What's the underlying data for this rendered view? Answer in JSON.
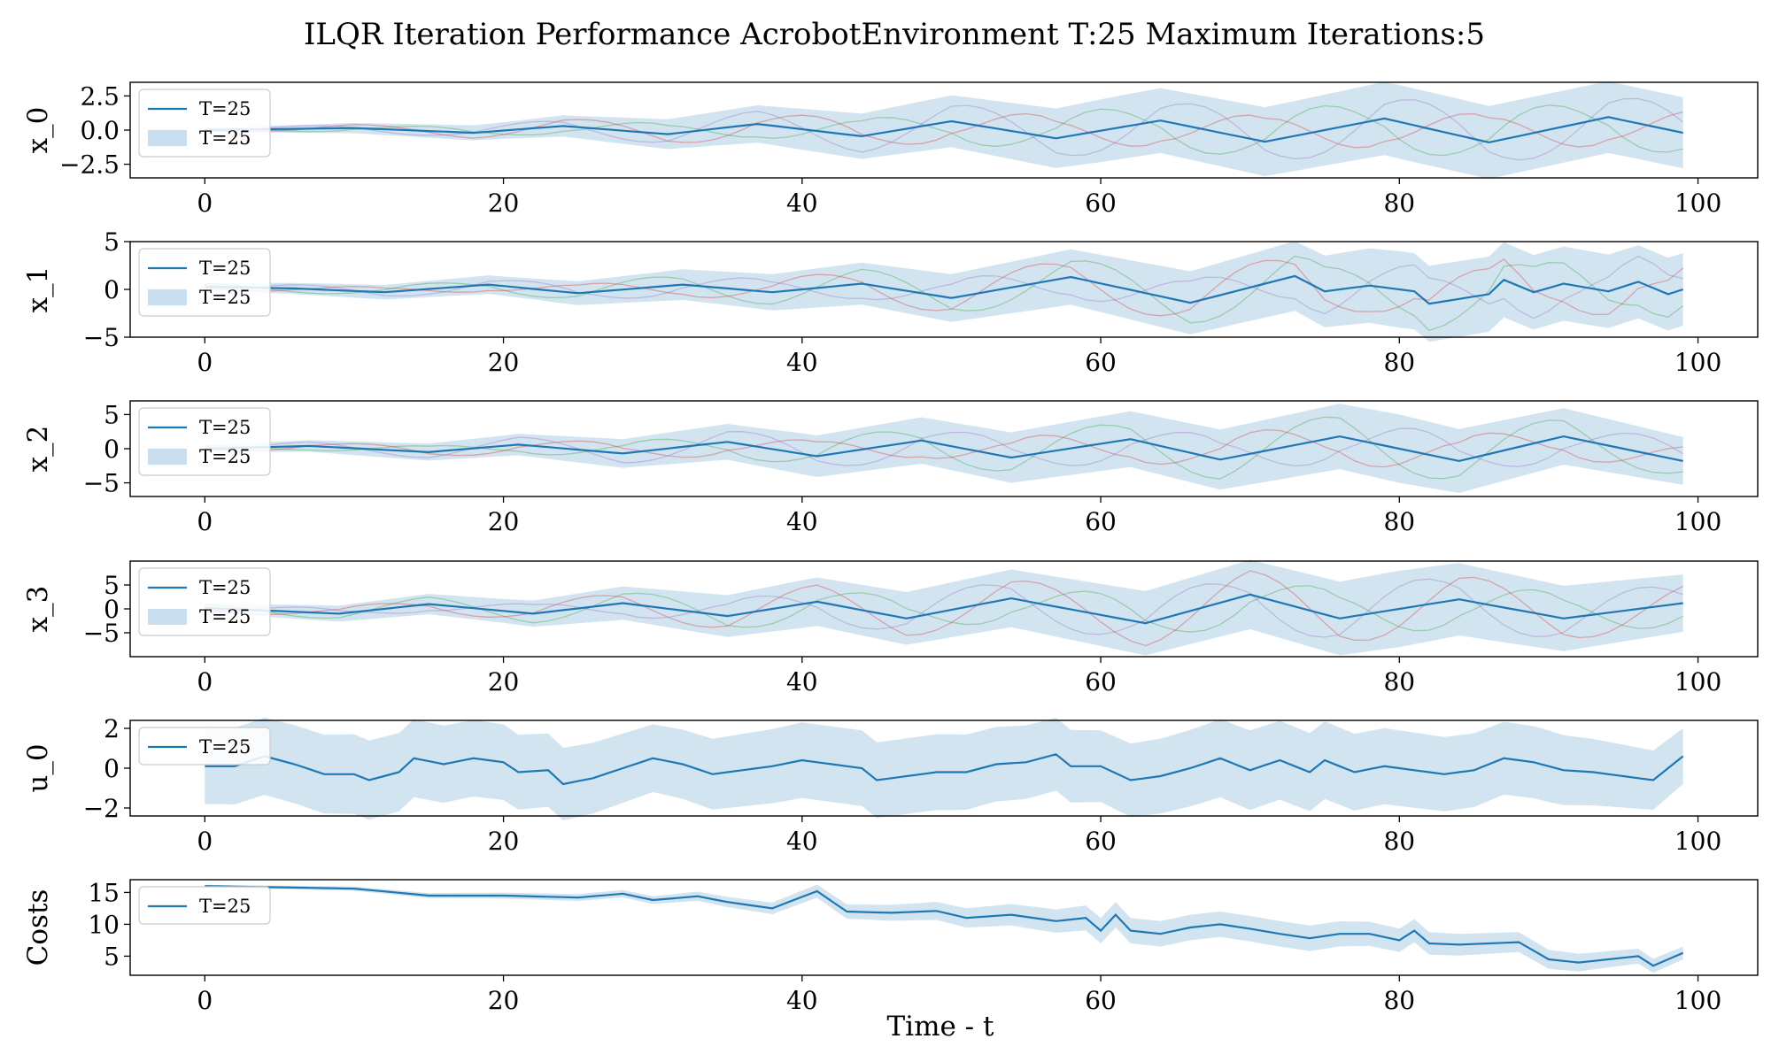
{
  "colors": {
    "mean": "#1f77b4",
    "band": "#bcd6ea",
    "traces": [
      "#2ca02c",
      "#d62728",
      "#9467bd"
    ]
  },
  "chart_data": {
    "type": "line",
    "title": "ILQR Iteration Performance AcrobotEnvironment T:25 Maximum Iterations:5",
    "xlabel": "Time - t",
    "xlim": [
      -5,
      104
    ],
    "xticks": [
      0,
      20,
      40,
      60,
      80,
      100
    ],
    "legend_position": "top-left",
    "grid": false,
    "panels": [
      {
        "ylabel": "x_0",
        "ylim": [
          -3.5,
          3.5
        ],
        "yticks": [
          2.5,
          0.0,
          -2.5
        ],
        "ytick_labels": [
          "2.5",
          "0.0",
          "−2.5"
        ],
        "legend": [
          "T=25",
          "T=25"
        ],
        "series": [
          {
            "name": "T=25",
            "x": [
              0,
              99
            ],
            "mean_points": [
              [
                0,
                0
              ],
              [
                10,
                0.15
              ],
              [
                18,
                -0.2
              ],
              [
                24,
                0.3
              ],
              [
                31,
                -0.3
              ],
              [
                37,
                0.45
              ],
              [
                44,
                -0.45
              ],
              [
                50,
                0.65
              ],
              [
                57,
                -0.6
              ],
              [
                64,
                0.7
              ],
              [
                71,
                -0.85
              ],
              [
                79,
                0.85
              ],
              [
                86,
                -0.9
              ],
              [
                94,
                0.95
              ],
              [
                99,
                -0.2
              ]
            ],
            "band_halfwidth": [
              [
                0,
                0.15
              ],
              [
                20,
                0.6
              ],
              [
                40,
                1.5
              ],
              [
                60,
                2.3
              ],
              [
                80,
                2.7
              ],
              [
                99,
                2.6
              ]
            ]
          }
        ]
      },
      {
        "ylabel": "x_1",
        "ylim": [
          -5,
          5
        ],
        "yticks": [
          5,
          0,
          -5
        ],
        "ytick_labels": [
          "5",
          "0",
          "−5"
        ],
        "legend": [
          "T=25",
          "T=25"
        ],
        "series": [
          {
            "name": "T=25",
            "x": [
              0,
              99
            ],
            "mean_points": [
              [
                0,
                0.3
              ],
              [
                6,
                0.1
              ],
              [
                12,
                -0.3
              ],
              [
                19,
                0.5
              ],
              [
                25,
                -0.4
              ],
              [
                32,
                0.5
              ],
              [
                38,
                -0.3
              ],
              [
                44,
                0.6
              ],
              [
                50,
                -0.9
              ],
              [
                58,
                1.3
              ],
              [
                66,
                -1.4
              ],
              [
                73,
                1.4
              ],
              [
                75,
                -0.2
              ],
              [
                78,
                0.4
              ],
              [
                81,
                -0.2
              ],
              [
                82,
                -1.5
              ],
              [
                86,
                -0.5
              ],
              [
                87,
                1.0
              ],
              [
                89,
                -0.3
              ],
              [
                91,
                0.6
              ],
              [
                94,
                -0.2
              ],
              [
                96,
                0.8
              ],
              [
                98,
                -0.5
              ],
              [
                99,
                0
              ]
            ],
            "band_halfwidth": [
              [
                0,
                0.4
              ],
              [
                20,
                1.0
              ],
              [
                40,
                2.0
              ],
              [
                60,
                3.0
              ],
              [
                80,
                4.0
              ],
              [
                99,
                3.8
              ]
            ]
          }
        ]
      },
      {
        "ylabel": "x_2",
        "ylim": [
          -7,
          7
        ],
        "yticks": [
          5,
          0,
          -5
        ],
        "ytick_labels": [
          "5",
          "0",
          "−5"
        ],
        "legend": [
          "T=25",
          "T=25"
        ],
        "series": [
          {
            "name": "T=25",
            "x": [
              0,
              99
            ],
            "mean_points": [
              [
                0,
                0
              ],
              [
                7,
                0.4
              ],
              [
                15,
                -0.5
              ],
              [
                21,
                0.6
              ],
              [
                28,
                -0.7
              ],
              [
                35,
                1.0
              ],
              [
                41,
                -1.1
              ],
              [
                48,
                1.2
              ],
              [
                54,
                -1.3
              ],
              [
                62,
                1.4
              ],
              [
                68,
                -1.6
              ],
              [
                76,
                1.8
              ],
              [
                84,
                -1.8
              ],
              [
                91,
                1.8
              ],
              [
                99,
                -1.8
              ]
            ],
            "band_halfwidth": [
              [
                0,
                0.5
              ],
              [
                20,
                1.5
              ],
              [
                40,
                3.0
              ],
              [
                60,
                4.0
              ],
              [
                80,
                5.0
              ],
              [
                99,
                3.5
              ]
            ]
          }
        ]
      },
      {
        "ylabel": "x_3",
        "ylim": [
          -10,
          10
        ],
        "yticks": [
          5,
          0,
          -5
        ],
        "ytick_labels": [
          "5",
          "0",
          "−5"
        ],
        "legend": [
          "T=25",
          "T=25"
        ],
        "series": [
          {
            "name": "T=25",
            "x": [
              0,
              99
            ],
            "mean_points": [
              [
                0,
                0.2
              ],
              [
                9,
                -1.0
              ],
              [
                15,
                1.0
              ],
              [
                22,
                -1.0
              ],
              [
                28,
                1.2
              ],
              [
                35,
                -1.5
              ],
              [
                41,
                1.5
              ],
              [
                47,
                -2.0
              ],
              [
                54,
                2.2
              ],
              [
                63,
                -3.0
              ],
              [
                70,
                3.0
              ],
              [
                76,
                -2.0
              ],
              [
                84,
                2.0
              ],
              [
                91,
                -2.0
              ],
              [
                99,
                1.2
              ]
            ],
            "band_halfwidth": [
              [
                0,
                1.0
              ],
              [
                20,
                2.5
              ],
              [
                40,
                5.0
              ],
              [
                60,
                6.5
              ],
              [
                80,
                8.0
              ],
              [
                99,
                6.0
              ]
            ]
          }
        ]
      },
      {
        "ylabel": "u_0",
        "ylim": [
          -2.4,
          2.4
        ],
        "yticks": [
          2,
          0,
          -2
        ],
        "ytick_labels": [
          "2",
          "0",
          "−2"
        ],
        "legend": [
          "T=25"
        ],
        "series": [
          {
            "name": "T=25",
            "x": [
              0,
              99
            ],
            "mean_points": [
              [
                0,
                0.1
              ],
              [
                2,
                0.1
              ],
              [
                4,
                0.6
              ],
              [
                6,
                0.2
              ],
              [
                8,
                -0.3
              ],
              [
                10,
                -0.3
              ],
              [
                11,
                -0.6
              ],
              [
                13,
                -0.2
              ],
              [
                14,
                0.5
              ],
              [
                16,
                0.2
              ],
              [
                18,
                0.5
              ],
              [
                20,
                0.3
              ],
              [
                21,
                -0.2
              ],
              [
                23,
                -0.1
              ],
              [
                24,
                -0.8
              ],
              [
                26,
                -0.5
              ],
              [
                28,
                0
              ],
              [
                30,
                0.5
              ],
              [
                32,
                0.2
              ],
              [
                34,
                -0.3
              ],
              [
                36,
                -0.1
              ],
              [
                38,
                0.1
              ],
              [
                40,
                0.4
              ],
              [
                42,
                0.2
              ],
              [
                44,
                0
              ],
              [
                45,
                -0.6
              ],
              [
                47,
                -0.4
              ],
              [
                49,
                -0.2
              ],
              [
                51,
                -0.2
              ],
              [
                53,
                0.2
              ],
              [
                55,
                0.3
              ],
              [
                57,
                0.7
              ],
              [
                58,
                0.1
              ],
              [
                60,
                0.1
              ],
              [
                62,
                -0.6
              ],
              [
                64,
                -0.4
              ],
              [
                66,
                0
              ],
              [
                68,
                0.5
              ],
              [
                70,
                -0.1
              ],
              [
                72,
                0.4
              ],
              [
                74,
                -0.2
              ],
              [
                75,
                0.4
              ],
              [
                77,
                -0.2
              ],
              [
                79,
                0.1
              ],
              [
                81,
                -0.1
              ],
              [
                83,
                -0.3
              ],
              [
                85,
                -0.1
              ],
              [
                87,
                0.5
              ],
              [
                89,
                0.3
              ],
              [
                91,
                -0.1
              ],
              [
                93,
                -0.2
              ],
              [
                95,
                -0.4
              ],
              [
                97,
                -0.6
              ],
              [
                99,
                0.6
              ]
            ],
            "band_halfwidth": [
              [
                0,
                1.9
              ],
              [
                10,
                2.0
              ],
              [
                20,
                1.9
              ],
              [
                30,
                1.7
              ],
              [
                40,
                1.9
              ],
              [
                50,
                1.9
              ],
              [
                60,
                1.8
              ],
              [
                70,
                2.0
              ],
              [
                80,
                1.9
              ],
              [
                90,
                1.8
              ],
              [
                99,
                1.4
              ]
            ]
          }
        ]
      },
      {
        "ylabel": "Costs",
        "ylim": [
          2,
          17
        ],
        "yticks": [
          15,
          10,
          5
        ],
        "ytick_labels": [
          "15",
          "10",
          "5"
        ],
        "legend": [
          "T=25"
        ],
        "series": [
          {
            "name": "T=25",
            "x": [
              0,
              99
            ],
            "mean_points": [
              [
                0,
                16
              ],
              [
                5,
                15.8
              ],
              [
                10,
                15.6
              ],
              [
                15,
                14.5
              ],
              [
                20,
                14.5
              ],
              [
                25,
                14.2
              ],
              [
                28,
                14.8
              ],
              [
                30,
                13.8
              ],
              [
                33,
                14.4
              ],
              [
                35,
                13.5
              ],
              [
                38,
                12.5
              ],
              [
                41,
                15.2
              ],
              [
                43,
                12
              ],
              [
                46,
                11.8
              ],
              [
                49,
                12.1
              ],
              [
                51,
                11
              ],
              [
                54,
                11.5
              ],
              [
                57,
                10.5
              ],
              [
                59,
                11
              ],
              [
                60,
                9
              ],
              [
                61,
                11.5
              ],
              [
                62,
                9
              ],
              [
                64,
                8.5
              ],
              [
                66,
                9.5
              ],
              [
                68,
                10
              ],
              [
                70,
                9.3
              ],
              [
                72,
                8.5
              ],
              [
                74,
                7.8
              ],
              [
                76,
                8.5
              ],
              [
                78,
                8.5
              ],
              [
                80,
                7.5
              ],
              [
                81,
                9
              ],
              [
                82,
                7
              ],
              [
                84,
                6.8
              ],
              [
                86,
                7
              ],
              [
                88,
                7.2
              ],
              [
                90,
                4.5
              ],
              [
                92,
                4
              ],
              [
                94,
                4.5
              ],
              [
                96,
                5
              ],
              [
                97,
                3.5
              ],
              [
                99,
                5.5
              ]
            ],
            "band_halfwidth": [
              [
                0,
                0.2
              ],
              [
                30,
                0.6
              ],
              [
                45,
                1.2
              ],
              [
                60,
                2.0
              ],
              [
                75,
                2.0
              ],
              [
                90,
                1.5
              ],
              [
                99,
                1.0
              ]
            ]
          }
        ]
      }
    ]
  }
}
